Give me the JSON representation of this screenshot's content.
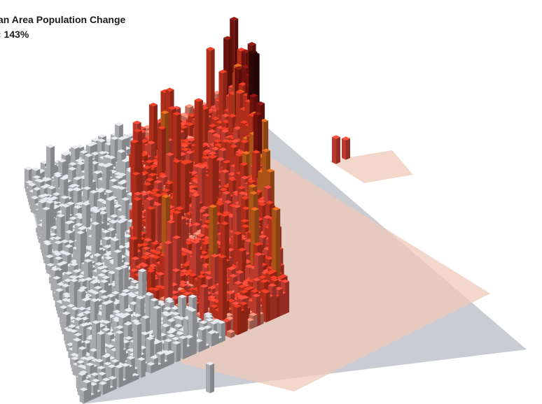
{
  "title": {
    "line1": "an Area Population Change",
    "line2": ": 143%"
  },
  "colors": {
    "background": "#ffffff",
    "base_plane": "#c9ccd2",
    "grey_bar": "#d7d9de",
    "tint_ground": "#efc9b9",
    "low_change": "#f28a74",
    "mid_change": "#ef4a3a",
    "high_change": "#e03a22",
    "peak_orange": "#dd6a1f",
    "peak_dark_red": "#8e1610",
    "peak_near_black": "#3a0a08"
  },
  "icons": {
    "map": "3d-population-bar-map"
  }
}
